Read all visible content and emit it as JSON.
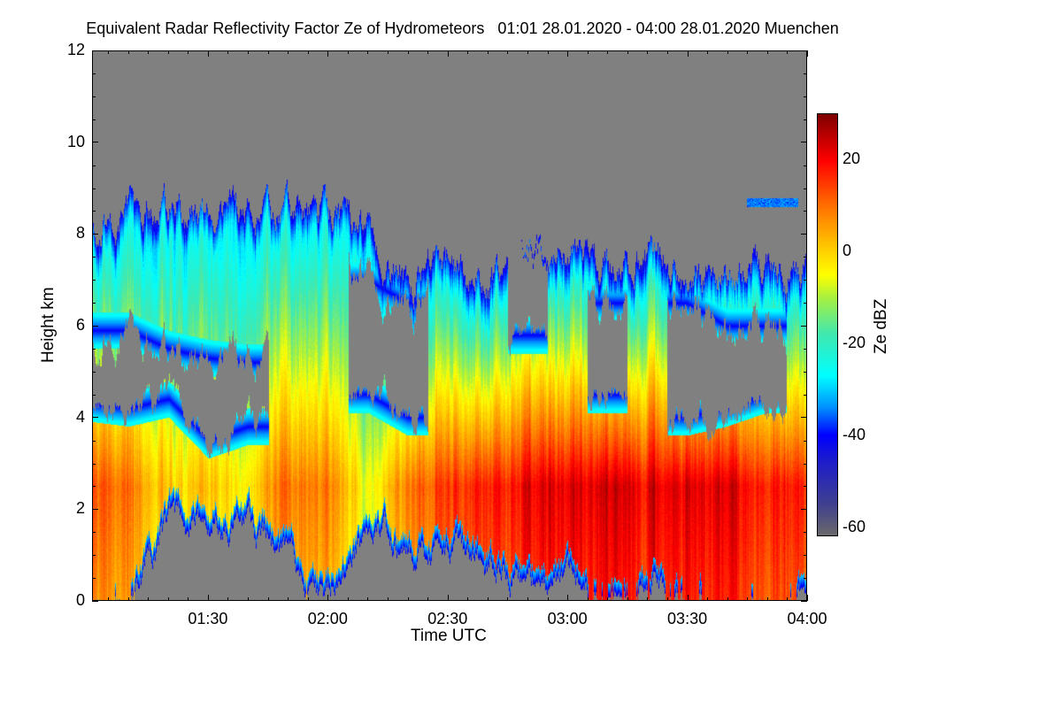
{
  "chart_data": {
    "type": "heatmap",
    "title": "Equivalent Radar Reflectivity Factor Ze of Hydrometeors   01:01 28.01.2020 - 04:00 28.01.2020 Muenchen",
    "xlabel": "Time UTC",
    "ylabel": "Height km",
    "xlim_minutes_utc": [
      61,
      240
    ],
    "ylim": [
      0,
      12
    ],
    "x_ticks": [
      {
        "label": "01:30",
        "min": 90
      },
      {
        "label": "02:00",
        "min": 120
      },
      {
        "label": "02:30",
        "min": 150
      },
      {
        "label": "03:00",
        "min": 180
      },
      {
        "label": "03:30",
        "min": 210
      },
      {
        "label": "04:00",
        "min": 240
      }
    ],
    "y_ticks": [
      {
        "label": "0",
        "v": 0
      },
      {
        "label": "2",
        "v": 2
      },
      {
        "label": "4",
        "v": 4
      },
      {
        "label": "6",
        "v": 6
      },
      {
        "label": "8",
        "v": 8
      },
      {
        "label": "10",
        "v": 10
      },
      {
        "label": "12",
        "v": 12
      }
    ],
    "colorbar": {
      "label": "Ze dBZ",
      "range": [
        -62,
        30
      ],
      "ticks": [
        {
          "label": "20",
          "v": 20
        },
        {
          "label": "0",
          "v": 0
        },
        {
          "label": "-20",
          "v": -20
        },
        {
          "label": "-40",
          "v": -40
        },
        {
          "label": "-60",
          "v": -60
        }
      ],
      "colors": [
        [
          -62,
          "#6a6a6a"
        ],
        [
          -55,
          "#404090"
        ],
        [
          -45,
          "#1a1ad0"
        ],
        [
          -40,
          "#0000ff"
        ],
        [
          -34,
          "#0090ff"
        ],
        [
          -27,
          "#00ffff"
        ],
        [
          -18,
          "#40e8b0"
        ],
        [
          -10,
          "#a8f040"
        ],
        [
          -5,
          "#ffff00"
        ],
        [
          2,
          "#ffc000"
        ],
        [
          10,
          "#ff7000"
        ],
        [
          20,
          "#ff0000"
        ],
        [
          30,
          "#800000"
        ]
      ]
    },
    "no_echo_color": "#808080",
    "echo_profile_columns": [
      "time_min",
      "top_km",
      "base_km",
      "gap_low_km",
      "gap_high_km",
      "max_dBZ"
    ],
    "echo_profile": [
      [
        61,
        8.5,
        0,
        4.3,
        5.9,
        12
      ],
      [
        70,
        8.6,
        0,
        4.2,
        5.9,
        10
      ],
      [
        80,
        8.6,
        1.6,
        4.4,
        5.5,
        0
      ],
      [
        90,
        8.5,
        1.8,
        3.5,
        5.3,
        0
      ],
      [
        100,
        8.4,
        1.5,
        3.8,
        5.2,
        -2
      ],
      [
        110,
        8.4,
        0.8,
        0,
        0,
        10
      ],
      [
        120,
        8.3,
        0.2,
        0,
        0,
        8
      ],
      [
        130,
        8.0,
        1.5,
        4.5,
        7.0,
        -5
      ],
      [
        140,
        7.0,
        1.0,
        4.0,
        6.5,
        10
      ],
      [
        150,
        7.3,
        1.2,
        0,
        0,
        15
      ],
      [
        160,
        7.0,
        0.8,
        0,
        0,
        18
      ],
      [
        170,
        7.5,
        0.3,
        5.8,
        7.4,
        20
      ],
      [
        180,
        7.6,
        0.2,
        0,
        0,
        22
      ],
      [
        190,
        7.3,
        0,
        4.5,
        6.5,
        25
      ],
      [
        200,
        7.6,
        0.3,
        0,
        0,
        22
      ],
      [
        210,
        7.0,
        0,
        4.0,
        6.5,
        22
      ],
      [
        220,
        7.2,
        0,
        4.2,
        6.0,
        20
      ],
      [
        230,
        7.3,
        0,
        4.5,
        6.0,
        18
      ],
      [
        240,
        7.0,
        0,
        0,
        0,
        18
      ]
    ],
    "patches": [
      {
        "t0": 225,
        "t1": 238,
        "h0": 8.6,
        "h1": 8.8,
        "dBZ": -35
      }
    ]
  }
}
